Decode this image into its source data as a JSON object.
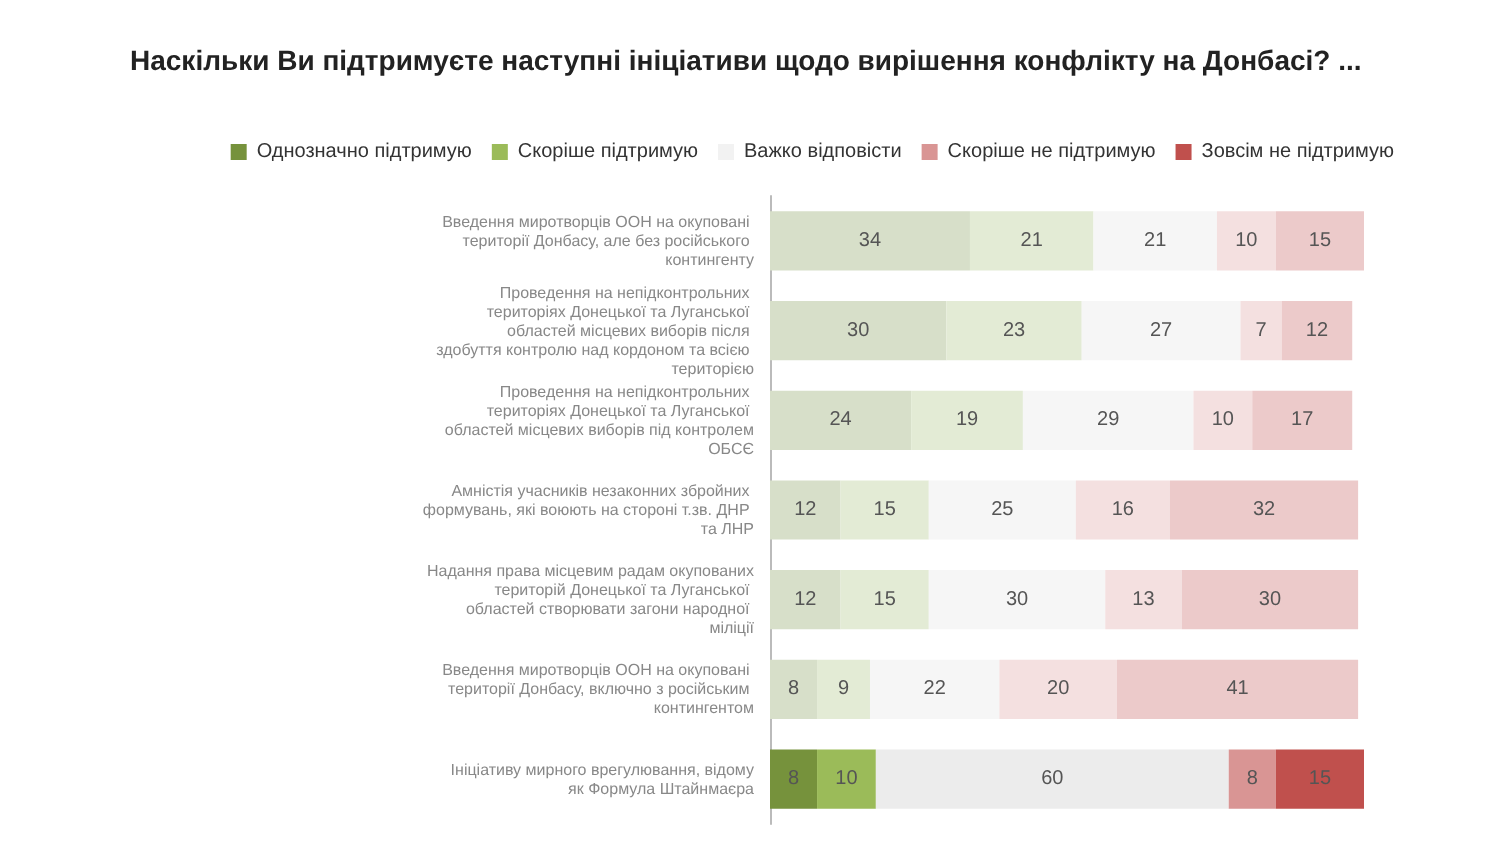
{
  "chart_data": {
    "type": "bar",
    "orientation": "horizontal",
    "stacked": true,
    "title": "Наскільки Ви підтримуєте наступні ініціативи щодо вирішення конфлікту на Донбасі? ...",
    "categories": [
      "Введення миротворців ООН на окуповані території Донбасу, але без російського контингенту",
      "Проведення на непідконтрольних територіях Донецької та Луганської областей місцевих виборів після здобуття контролю над кордоном та всією територією",
      "Проведення на непідконтрольних територіях Донецької та Луганської областей місцевих виборів під контролем ОБСЄ",
      "Амністія учасників незаконних збройних формувань, які воюють на стороні т.зв. ДНР та ЛНР",
      "Надання права місцевим радам окупованих територій Донецької та Луганської областей створювати загони народної міліції",
      "Введення миротворців ООН на окуповані території Донбасу, включно з російським контингентом",
      "Ініціативу мирного врегулювання, відому як Формула Штайнмаєра"
    ],
    "series": [
      {
        "name": "Однозначно підтримую",
        "color": "#76923c",
        "colors": [
          "#d7dfc9",
          "#d7dfc9",
          "#d7dfc9",
          "#d7dfc9",
          "#d7dfc9",
          "#d7dfc9",
          "#76923c"
        ],
        "values": [
          34,
          30,
          24,
          12,
          12,
          8,
          8
        ]
      },
      {
        "name": "Скоріше підтримую",
        "color": "#9bbb59",
        "colors": [
          "#e3ebd5",
          "#e3ebd5",
          "#e3ebd5",
          "#e3ebd5",
          "#e3ebd5",
          "#e3ebd5",
          "#9bbb59"
        ],
        "values": [
          21,
          23,
          19,
          15,
          15,
          9,
          10
        ]
      },
      {
        "name": "Важко відповісти",
        "color": "#f2f2f2",
        "colors": [
          "#f6f6f6",
          "#f6f6f6",
          "#f6f6f6",
          "#f6f6f6",
          "#f6f6f6",
          "#f6f6f6",
          "#ececec"
        ],
        "values": [
          21,
          27,
          29,
          25,
          30,
          22,
          60
        ]
      },
      {
        "name": "Скоріше не підтримую",
        "color": "#d99594",
        "colors": [
          "#f4e0e0",
          "#f4e0e0",
          "#f4e0e0",
          "#f4e0e0",
          "#f4e0e0",
          "#f4e0e0",
          "#d99594"
        ],
        "values": [
          10,
          7,
          10,
          16,
          13,
          20,
          8
        ]
      },
      {
        "name": "Зовсім не підтримую",
        "color": "#c0504d",
        "colors": [
          "#eccaca",
          "#eccaca",
          "#eccaca",
          "#eccaca",
          "#eccaca",
          "#eccaca",
          "#c0504d"
        ],
        "values": [
          15,
          12,
          17,
          32,
          30,
          41,
          15
        ]
      }
    ],
    "xlim": [
      0,
      101
    ],
    "data_labels": true,
    "legend": "top",
    "tick_labels": "y"
  }
}
